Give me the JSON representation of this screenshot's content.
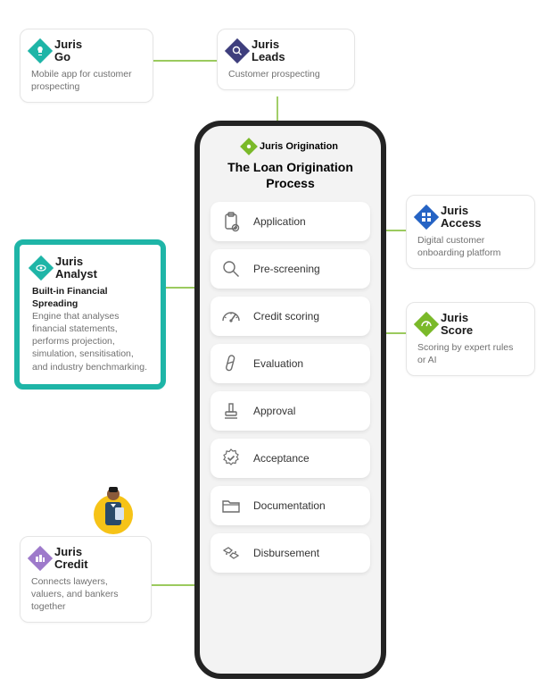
{
  "colors": {
    "teal": "#1eb5a7",
    "green": "#7ab929",
    "blue": "#2563c4",
    "purple": "#7a3fa8",
    "lightpurple": "#9e7acb",
    "navy": "#3e3e7d",
    "grey": "#6c6c6c",
    "connector": "#7ab929"
  },
  "cards": {
    "go": {
      "brand": "Juris",
      "name": "Go",
      "desc": "Mobile app for customer prospecting"
    },
    "leads": {
      "brand": "Juris",
      "name": "Leads",
      "desc": "Customer prospecting"
    },
    "analyst": {
      "brand": "Juris",
      "name": "Analyst",
      "desc_strong": "Built-in Financial Spreading",
      "desc": "Engine that analyses financial statements, performs projection, simulation, sensitisation, and industry benchmarking."
    },
    "access": {
      "brand": "Juris",
      "name": "Access",
      "desc": "Digital customer onboarding platform"
    },
    "score": {
      "brand": "Juris",
      "name": "Score",
      "desc": "Scoring by expert rules or AI"
    },
    "credit": {
      "brand": "Juris",
      "name": "Credit",
      "desc": "Connects lawyers, valuers, and bankers together"
    }
  },
  "phone": {
    "logo_brand": "Juris",
    "logo_name": "Origination",
    "title": "The Loan Origination Process",
    "steps": [
      {
        "label": "Application",
        "icon": "application-icon"
      },
      {
        "label": "Pre-screening",
        "icon": "search-icon"
      },
      {
        "label": "Credit scoring",
        "icon": "gauge-icon"
      },
      {
        "label": "Evaluation",
        "icon": "tube-icon"
      },
      {
        "label": "Approval",
        "icon": "stamp-icon"
      },
      {
        "label": "Acceptance",
        "icon": "checkseal-icon"
      },
      {
        "label": "Documentation",
        "icon": "folder-icon"
      },
      {
        "label": "Disbursement",
        "icon": "handshake-icon"
      }
    ]
  }
}
